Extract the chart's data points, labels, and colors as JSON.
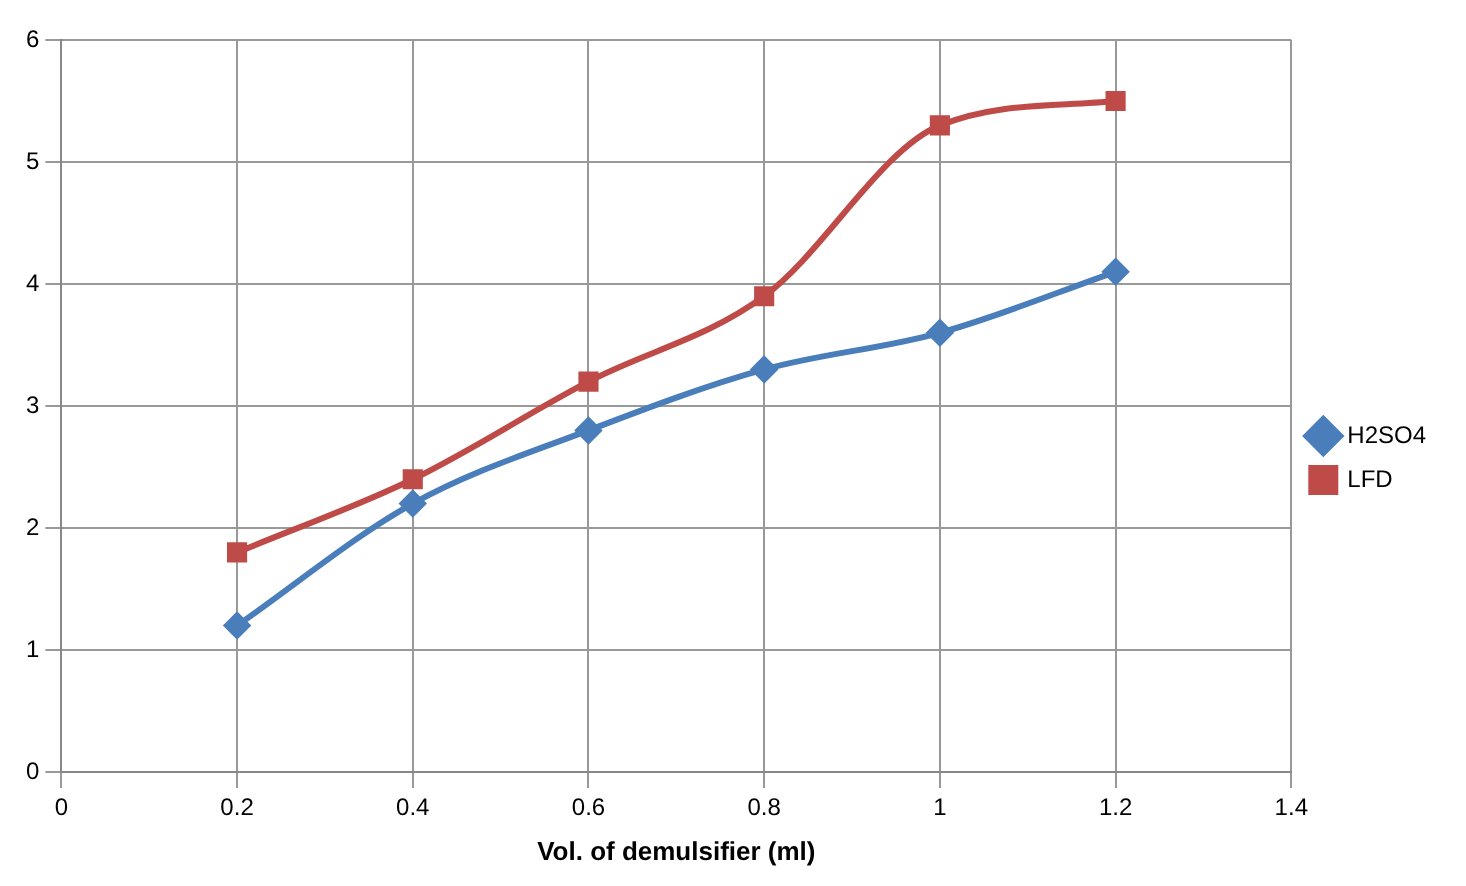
{
  "chart_data": {
    "type": "line",
    "xlabel": "Vol. of demulsifier (ml)",
    "x": [
      0.2,
      0.4,
      0.6,
      0.8,
      1,
      1.2
    ],
    "series": [
      {
        "name": "H2SO4",
        "color": "#4a7ebb",
        "marker": "diamond",
        "values": [
          1.2,
          2.2,
          2.8,
          3.3,
          3.6,
          4.1
        ]
      },
      {
        "name": "LFD",
        "color": "#be4b48",
        "marker": "square",
        "values": [
          1.8,
          2.4,
          3.2,
          3.9,
          5.3,
          5.5
        ]
      }
    ],
    "xlim": [
      0,
      1.4
    ],
    "xticks": [
      0,
      0.2,
      0.4,
      0.6,
      0.8,
      1,
      1.2,
      1.4
    ],
    "ylim": [
      0,
      6
    ],
    "yticks": [
      0,
      1,
      2,
      3,
      4,
      5,
      6
    ],
    "grid": true,
    "legend": "right",
    "line_style": "solid"
  }
}
